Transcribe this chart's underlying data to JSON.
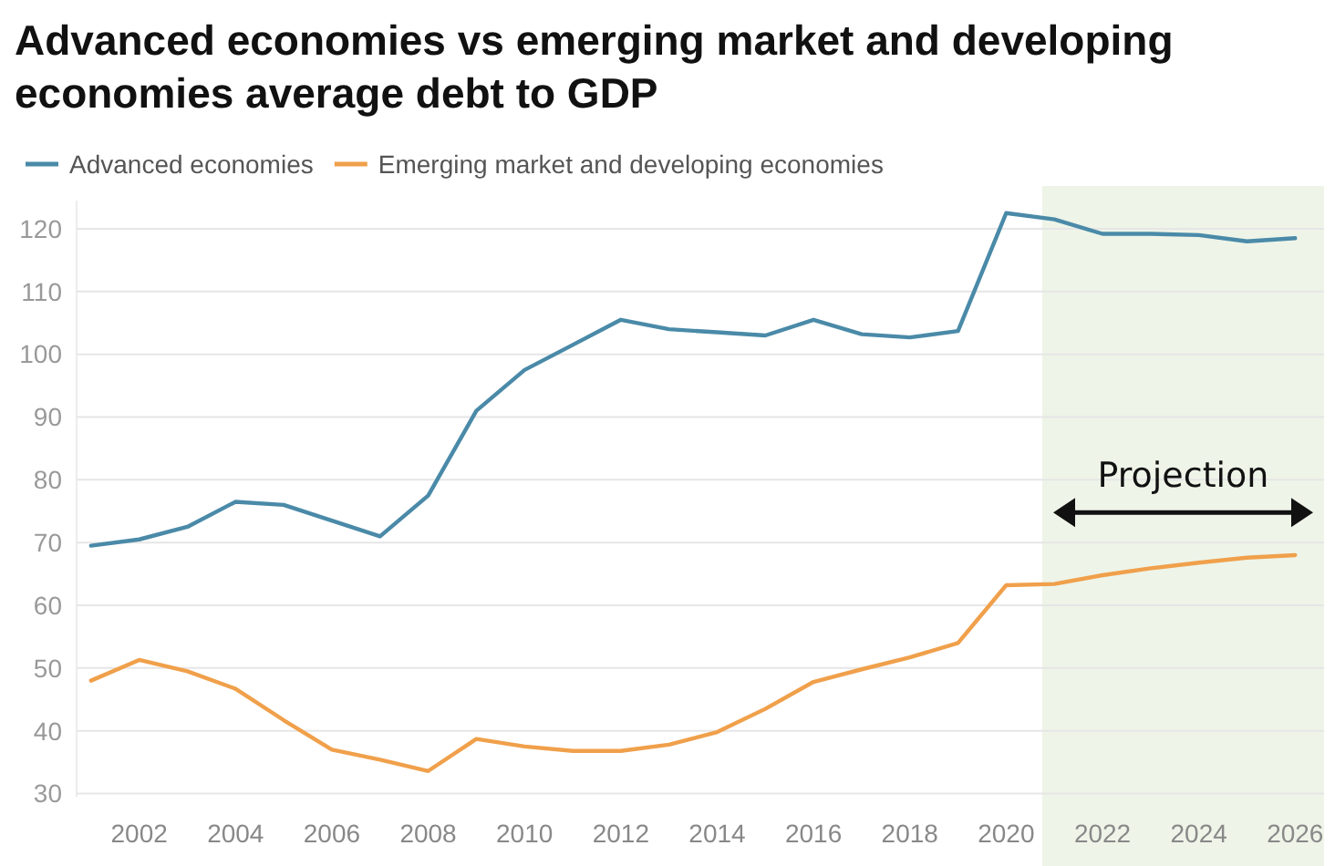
{
  "chart_data": {
    "type": "line",
    "title": "Advanced economies vs emerging market and developing economies average debt to GDP",
    "x": [
      2001,
      2002,
      2003,
      2004,
      2005,
      2006,
      2007,
      2008,
      2009,
      2010,
      2011,
      2012,
      2013,
      2014,
      2015,
      2016,
      2017,
      2018,
      2019,
      2020,
      2021,
      2022,
      2023,
      2024,
      2025,
      2026
    ],
    "series": [
      {
        "name": "Advanced economies",
        "color": "#4a8aa8",
        "values": [
          69.5,
          70.5,
          72.5,
          76.5,
          76,
          73.5,
          71,
          77.5,
          91,
          97.5,
          101.5,
          105.5,
          104,
          103.5,
          103,
          105.5,
          103.2,
          102.7,
          103.7,
          122.5,
          121.5,
          119.2,
          119.2,
          119,
          118,
          118.5
        ]
      },
      {
        "name": "Emerging market and developing economies",
        "color": "#f0a04b",
        "values": [
          48,
          51.3,
          49.5,
          46.7,
          41.7,
          37,
          35.4,
          33.6,
          38.7,
          37.5,
          36.8,
          36.8,
          37.8,
          39.8,
          43.5,
          47.8,
          49.8,
          51.7,
          54,
          63.2,
          63.4,
          64.8,
          65.9,
          66.8,
          67.6,
          68
        ]
      }
    ],
    "xlim": [
      2000.7,
      2026.6
    ],
    "xticks": [
      2002,
      2004,
      2006,
      2008,
      2010,
      2012,
      2014,
      2016,
      2018,
      2020,
      2022,
      2024,
      2026
    ],
    "ylim": [
      29.5,
      124.5
    ],
    "yticks": [
      30,
      40,
      50,
      60,
      70,
      80,
      90,
      100,
      110,
      120
    ],
    "bands": [
      {
        "axis": "x",
        "from": 2020.75,
        "to": 2026.6,
        "label": "Projection",
        "color": "#eef4e8"
      }
    ],
    "grid": "y",
    "legend": "top left",
    "line_style": "solid",
    "marker": "none"
  }
}
